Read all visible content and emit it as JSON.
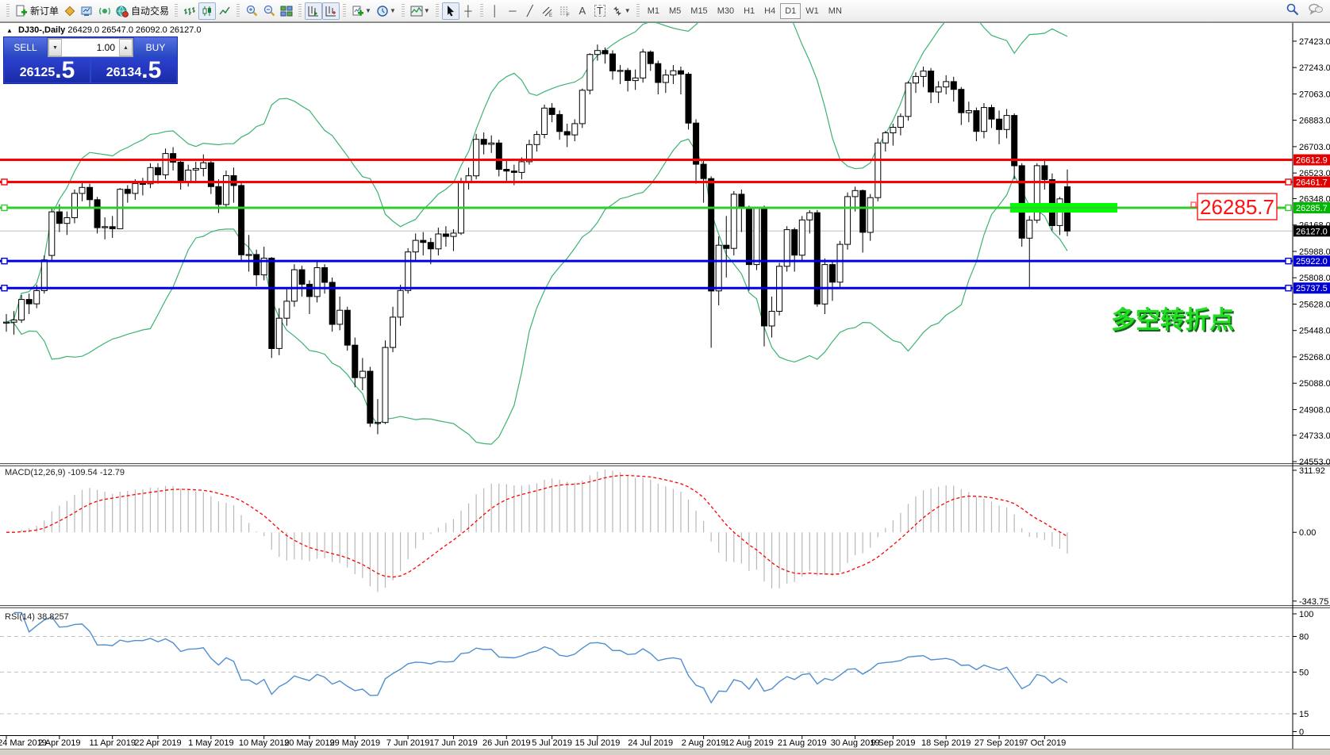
{
  "toolbar": {
    "new_order_label": "新订单",
    "autotrading_label": "自动交易",
    "timeframes": [
      "M1",
      "M5",
      "M15",
      "M30",
      "H1",
      "H4",
      "D1",
      "W1",
      "MN"
    ],
    "active_timeframe": "D1",
    "glyphs": {
      "crosshair": "┼",
      "vline": "│",
      "hline": "─",
      "trendline": "╱",
      "text_tool": "A",
      "label_tool": "T"
    },
    "icon_names": [
      "new-order-icon",
      "layouts-icon",
      "terminal-icon",
      "signal-icon",
      "autotrading-icon",
      "bar-chart-icon",
      "candlestick-icon",
      "line-chart-icon",
      "zoom-in-icon",
      "zoom-out-icon",
      "tile-windows-icon",
      "auto-scroll-icon",
      "chart-shift-icon",
      "new-chart-icon",
      "period-clock-icon",
      "indicator-list-icon",
      "cursor-icon",
      "crosshair-icon",
      "vline-icon",
      "hline-icon",
      "trendline-icon",
      "channel-icon",
      "fibonacci-icon",
      "text-icon",
      "label-icon",
      "arrows-icon",
      "search-icon",
      "chat-icon"
    ]
  },
  "header": {
    "symbol_period": "DJ30-,Daily",
    "ohlc_line": "26429.0 26547.0 26092.0 26127.0",
    "collapse_arrow": "▲"
  },
  "one_click": {
    "sell_label": "SELL",
    "buy_label": "BUY",
    "volume": "1.00",
    "sell_price_main": "26125",
    "sell_price_big": ".5",
    "buy_price_main": "26134",
    "buy_price_big": ".5",
    "spin_down": "▼",
    "spin_up": "▲"
  },
  "annotation": {
    "text": "多空转折点",
    "color": "#22dd22"
  },
  "big_price_label": {
    "text": "26285.7",
    "color": "#ff1111"
  },
  "indicators_text": {
    "macd": "MACD(12,26,9) -109.54 -12.79",
    "rsi": "RSI(14) 38.8257"
  },
  "chart_data": {
    "type": "candlestick",
    "symbol": "DJ30-",
    "timeframe": "Daily",
    "current_bar": {
      "open": 26429.0,
      "high": 26547.0,
      "low": 26092.0,
      "close": 26127.0
    },
    "bid": 26125.5,
    "ask": 26134.5,
    "y_range": [
      24537,
      27547
    ],
    "price_ticks": [
      27423,
      27243,
      27063,
      26883,
      26703,
      26523,
      26348,
      26168,
      25988,
      25808,
      25628,
      25448,
      25268,
      25088,
      24908,
      24733,
      24553
    ],
    "current_price": 26127.0,
    "hlines": [
      {
        "price": 26612.9,
        "color": "#ff0000",
        "label_bg": "#e00000",
        "handles": false,
        "highlight": false
      },
      {
        "price": 26461.7,
        "color": "#ff0000",
        "label_bg": "#e00000",
        "handles": true,
        "highlight": false
      },
      {
        "price": 26285.7,
        "color": "#2ecc2e",
        "label_bg": "#00b800",
        "handles": true,
        "highlight": true
      },
      {
        "price": 25922.0,
        "color": "#0000e0",
        "label_bg": "#0000d0",
        "handles": true,
        "highlight": false
      },
      {
        "price": 25737.5,
        "color": "#0000e0",
        "label_bg": "#0000d0",
        "handles": true,
        "highlight": false
      }
    ],
    "x_labels": [
      [
        "24 Mar 2019",
        0
      ],
      [
        "2 Apr 2019",
        7
      ],
      [
        "11 Apr 2019",
        14
      ],
      [
        "22 Apr 2019",
        20
      ],
      [
        "1 May 2019",
        27
      ],
      [
        "10 May 2019",
        34
      ],
      [
        "20 May 2019",
        40
      ],
      [
        "29 May 2019",
        46
      ],
      [
        "7 Jun 2019",
        53
      ],
      [
        "17 Jun 2019",
        59
      ],
      [
        "26 Jun 2019",
        66
      ],
      [
        "5 Jul 2019",
        72
      ],
      [
        "15 Jul 2019",
        78
      ],
      [
        "24 Jul 2019",
        85
      ],
      [
        "2 Aug 2019",
        92
      ],
      [
        "12 Aug 2019",
        98
      ],
      [
        "21 Aug 2019",
        105
      ],
      [
        "30 Aug 2019",
        112
      ],
      [
        "9 Sep 2019",
        117
      ],
      [
        "18 Sep 2019",
        124
      ],
      [
        "27 Sep 2019",
        131
      ],
      [
        "7 Oct 2019",
        137
      ]
    ],
    "ohlc": [
      [
        25500,
        25560,
        25440,
        25505
      ],
      [
        25505,
        25580,
        25420,
        25520
      ],
      [
        25520,
        25690,
        25500,
        25660
      ],
      [
        25660,
        25700,
        25560,
        25630
      ],
      [
        25630,
        25760,
        25600,
        25720
      ],
      [
        25720,
        25960,
        25700,
        25930
      ],
      [
        25960,
        26280,
        25930,
        26258
      ],
      [
        26258,
        26310,
        26120,
        26179
      ],
      [
        26179,
        26260,
        26100,
        26218
      ],
      [
        26218,
        26410,
        26180,
        26384
      ],
      [
        26384,
        26460,
        26330,
        26425
      ],
      [
        26425,
        26450,
        26290,
        26341
      ],
      [
        26341,
        26360,
        26110,
        26150
      ],
      [
        26150,
        26220,
        26070,
        26157
      ],
      [
        26157,
        26230,
        26080,
        26143
      ],
      [
        26143,
        26420,
        26140,
        26412
      ],
      [
        26412,
        26440,
        26320,
        26384
      ],
      [
        26384,
        26480,
        26340,
        26452
      ],
      [
        26452,
        26490,
        26370,
        26449
      ],
      [
        26449,
        26590,
        26420,
        26560
      ],
      [
        26560,
        26590,
        26450,
        26511
      ],
      [
        26511,
        26690,
        26480,
        26656
      ],
      [
        26656,
        26700,
        26540,
        26597
      ],
      [
        26597,
        26620,
        26410,
        26462
      ],
      [
        26462,
        26580,
        26430,
        26543
      ],
      [
        26543,
        26600,
        26470,
        26554
      ],
      [
        26554,
        26650,
        26500,
        26593
      ],
      [
        26593,
        26620,
        26380,
        26430
      ],
      [
        26430,
        26480,
        26250,
        26308
      ],
      [
        26308,
        26540,
        26280,
        26505
      ],
      [
        26505,
        26560,
        26320,
        26438
      ],
      [
        26438,
        26460,
        25920,
        25965
      ],
      [
        25965,
        26100,
        25850,
        25967
      ],
      [
        25967,
        26000,
        25750,
        25828
      ],
      [
        25828,
        26020,
        25790,
        25942
      ],
      [
        25942,
        25950,
        25260,
        25325
      ],
      [
        25325,
        25600,
        25280,
        25532
      ],
      [
        25532,
        25730,
        25480,
        25648
      ],
      [
        25648,
        25900,
        25610,
        25863
      ],
      [
        25863,
        25890,
        25680,
        25764
      ],
      [
        25764,
        25790,
        25560,
        25680
      ],
      [
        25680,
        25920,
        25640,
        25877
      ],
      [
        25877,
        25900,
        25700,
        25777
      ],
      [
        25777,
        25810,
        25440,
        25490
      ],
      [
        25490,
        25680,
        25450,
        25586
      ],
      [
        25586,
        25610,
        25310,
        25348
      ],
      [
        25348,
        25400,
        25060,
        25126
      ],
      [
        25126,
        25260,
        25040,
        25170
      ],
      [
        25170,
        25200,
        24790,
        24815
      ],
      [
        24815,
        24980,
        24740,
        24820
      ],
      [
        24820,
        25380,
        24810,
        25332
      ],
      [
        25332,
        25610,
        25300,
        25539
      ],
      [
        25539,
        25760,
        25480,
        25721
      ],
      [
        25721,
        26010,
        25700,
        25984
      ],
      [
        25984,
        26110,
        25930,
        26063
      ],
      [
        26063,
        26120,
        25960,
        26049
      ],
      [
        26049,
        26080,
        25900,
        26005
      ],
      [
        26005,
        26150,
        25960,
        26107
      ],
      [
        26107,
        26160,
        26020,
        26090
      ],
      [
        26090,
        26140,
        25990,
        26113
      ],
      [
        26113,
        26490,
        26100,
        26466
      ],
      [
        26466,
        26560,
        26410,
        26504
      ],
      [
        26504,
        26790,
        26480,
        26753
      ],
      [
        26753,
        26800,
        26650,
        26719
      ],
      [
        26719,
        26780,
        26660,
        26728
      ],
      [
        26728,
        26750,
        26500,
        26548
      ],
      [
        26548,
        26610,
        26470,
        26536
      ],
      [
        26536,
        26580,
        26440,
        26527
      ],
      [
        26527,
        26630,
        26480,
        26600
      ],
      [
        26600,
        26750,
        26580,
        26717
      ],
      [
        26717,
        26810,
        26670,
        26786
      ],
      [
        26786,
        26990,
        26760,
        26966
      ],
      [
        26966,
        27000,
        26870,
        26922
      ],
      [
        26922,
        26950,
        26750,
        26806
      ],
      [
        26806,
        26860,
        26700,
        26783
      ],
      [
        26783,
        26890,
        26740,
        26860
      ],
      [
        26860,
        27100,
        26830,
        27088
      ],
      [
        27088,
        27340,
        27060,
        27332
      ],
      [
        27332,
        27400,
        27290,
        27359
      ],
      [
        27359,
        27380,
        27270,
        27336
      ],
      [
        27336,
        27360,
        27160,
        27220
      ],
      [
        27220,
        27260,
        27130,
        27223
      ],
      [
        27223,
        27240,
        27080,
        27154
      ],
      [
        27154,
        27230,
        27090,
        27172
      ],
      [
        27172,
        27370,
        27140,
        27349
      ],
      [
        27349,
        27360,
        27220,
        27270
      ],
      [
        27270,
        27290,
        27060,
        27141
      ],
      [
        27141,
        27230,
        27070,
        27192
      ],
      [
        27192,
        27260,
        27130,
        27221
      ],
      [
        27221,
        27250,
        27060,
        27198
      ],
      [
        27198,
        27210,
        26820,
        26864
      ],
      [
        26864,
        26890,
        26450,
        26583
      ],
      [
        26583,
        26610,
        26320,
        26485
      ],
      [
        26485,
        26500,
        25330,
        25718
      ],
      [
        25718,
        26090,
        25620,
        26030
      ],
      [
        26030,
        26230,
        25810,
        26008
      ],
      [
        26008,
        26400,
        25960,
        26378
      ],
      [
        26378,
        26410,
        26120,
        26287
      ],
      [
        26287,
        26300,
        25720,
        25898
      ],
      [
        25898,
        26290,
        25860,
        26280
      ],
      [
        26280,
        26300,
        25340,
        25479
      ],
      [
        25479,
        25680,
        25400,
        25579
      ],
      [
        25579,
        25910,
        25550,
        25886
      ],
      [
        25886,
        26160,
        25850,
        26136
      ],
      [
        26136,
        26150,
        25850,
        25962
      ],
      [
        25962,
        26230,
        25920,
        26203
      ],
      [
        26203,
        26270,
        26110,
        26252
      ],
      [
        26252,
        26270,
        25610,
        25629
      ],
      [
        25629,
        25940,
        25560,
        25898
      ],
      [
        25898,
        25920,
        25650,
        25778
      ],
      [
        25778,
        26060,
        25740,
        26036
      ],
      [
        26036,
        26390,
        26000,
        26362
      ],
      [
        26362,
        26430,
        26260,
        26403
      ],
      [
        26403,
        26410,
        25980,
        26118
      ],
      [
        26118,
        26380,
        26060,
        26355
      ],
      [
        26355,
        26760,
        26330,
        26728
      ],
      [
        26728,
        26810,
        26670,
        26797
      ],
      [
        26797,
        26860,
        26710,
        26835
      ],
      [
        26835,
        26930,
        26780,
        26909
      ],
      [
        26909,
        27150,
        26880,
        27137
      ],
      [
        27137,
        27210,
        27070,
        27182
      ],
      [
        27182,
        27250,
        27110,
        27219
      ],
      [
        27219,
        27240,
        27000,
        27076
      ],
      [
        27076,
        27150,
        27000,
        27110
      ],
      [
        27110,
        27190,
        27060,
        27147
      ],
      [
        27147,
        27180,
        27010,
        27094
      ],
      [
        27094,
        27110,
        26850,
        26935
      ],
      [
        26935,
        27010,
        26870,
        26949
      ],
      [
        26949,
        26970,
        26740,
        26807
      ],
      [
        26807,
        27000,
        26760,
        26970
      ],
      [
        26970,
        26990,
        26830,
        26891
      ],
      [
        26891,
        26950,
        26720,
        26820
      ],
      [
        26820,
        26960,
        26760,
        26916
      ],
      [
        26916,
        26930,
        26480,
        26573
      ],
      [
        26573,
        26590,
        26020,
        26078
      ],
      [
        26078,
        26230,
        25743,
        26201
      ],
      [
        26201,
        26590,
        26180,
        26573
      ],
      [
        26573,
        26610,
        26410,
        26478
      ],
      [
        26478,
        26520,
        26130,
        26164
      ],
      [
        26164,
        26360,
        26100,
        26346
      ],
      [
        26429,
        26547,
        26092,
        26127
      ]
    ],
    "indicators": {
      "bollinger": {
        "period": 20,
        "deviation": 2,
        "color": "#3cb371"
      },
      "macd": {
        "params": "12,26,9",
        "main": -109.54,
        "signal": -12.79,
        "axis_ticks": [
          311.92,
          0.0,
          -343.75
        ],
        "value_range": [
          330,
          -360
        ],
        "hist_color": "#b8b8b8",
        "signal_color": "#ff0000"
      },
      "rsi": {
        "period": 14,
        "value": 38.8257,
        "axis_ticks": [
          100,
          80,
          50,
          15,
          0
        ],
        "levels": [
          80,
          50,
          15
        ],
        "range": [
          0,
          100
        ],
        "line_color": "#4f8fd0"
      }
    },
    "legend_position": "none",
    "grid": "off"
  }
}
